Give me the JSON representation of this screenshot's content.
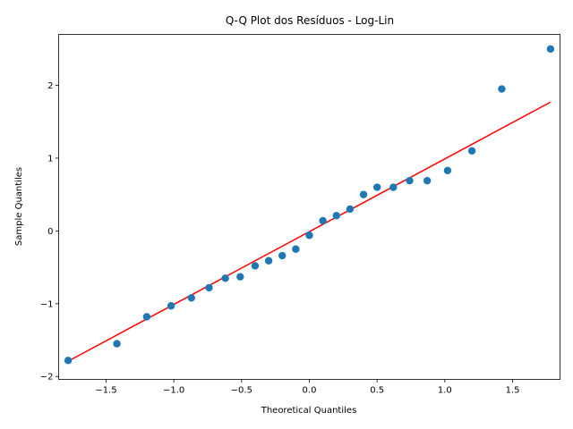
{
  "chart_data": {
    "type": "scatter",
    "title": "Q-Q Plot dos Resíduos - Log-Lin",
    "xlabel": "Theoretical Quantiles",
    "ylabel": "Sample Quantiles",
    "xlim": [
      -1.85,
      1.85
    ],
    "ylim": [
      -2.04,
      2.7
    ],
    "xticks": [
      -1.5,
      -1.0,
      -0.5,
      0.0,
      0.5,
      1.0,
      1.5
    ],
    "xtick_labels": [
      "−1.5",
      "−1.0",
      "−0.5",
      "0.0",
      "0.5",
      "1.0",
      "1.5"
    ],
    "yticks": [
      -2,
      -1,
      0,
      1,
      2
    ],
    "ytick_labels": [
      "−2",
      "−1",
      "0",
      "1",
      "2"
    ],
    "grid": false,
    "series": [
      {
        "marker_color": "#1f77b4",
        "x": [
          -1.78,
          -1.42,
          -1.2,
          -1.02,
          -0.87,
          -0.74,
          -0.62,
          -0.51,
          -0.4,
          -0.3,
          -0.2,
          -0.1,
          0.0,
          0.1,
          0.2,
          0.3,
          0.4,
          0.5,
          0.62,
          0.74,
          0.87,
          1.02,
          1.2,
          1.42,
          1.78
        ],
        "y": [
          -1.78,
          -1.55,
          -1.18,
          -1.03,
          -0.92,
          -0.78,
          -0.65,
          -0.63,
          -0.48,
          -0.41,
          -0.34,
          -0.25,
          -0.06,
          0.14,
          0.21,
          0.3,
          0.5,
          0.6,
          0.6,
          0.69,
          0.69,
          0.83,
          1.1,
          1.95,
          2.5
        ]
      }
    ],
    "reference_line": {
      "color": "#ff0000",
      "x": [
        -1.78,
        1.78
      ],
      "y": [
        -1.79,
        1.77
      ]
    }
  }
}
